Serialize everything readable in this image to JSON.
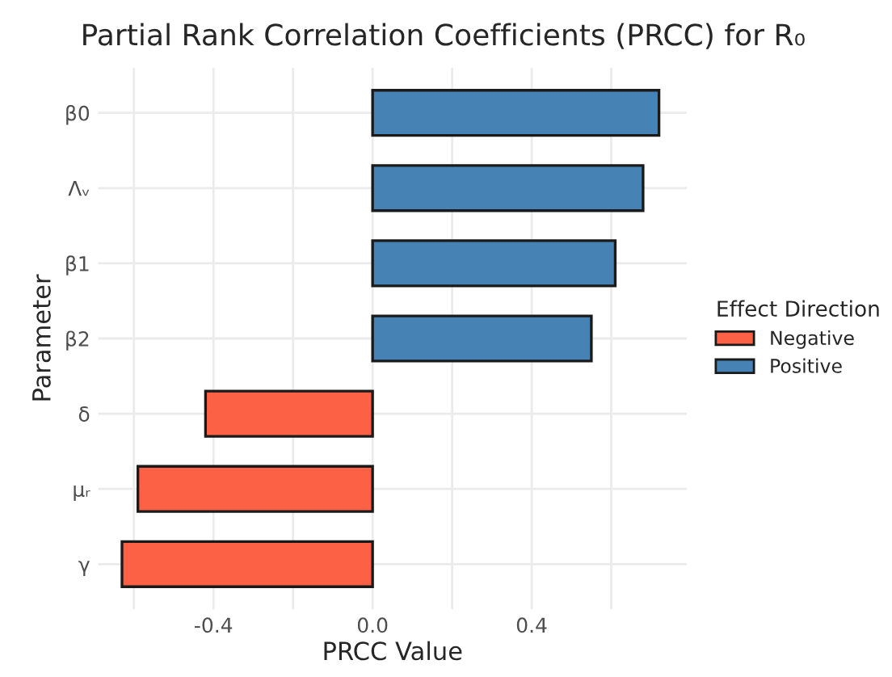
{
  "chart_data": {
    "type": "bar",
    "orientation": "horizontal",
    "title": "Partial Rank Correlation Coefficients (PRCC) for R₀",
    "xlabel": "PRCC Value",
    "ylabel": "Parameter",
    "legend_title": "Effect Direction",
    "categories": [
      "β0",
      "Λᵥ",
      "β1",
      "β2",
      "δ",
      "μᵣ",
      "γ"
    ],
    "series": [
      {
        "name": "Negative",
        "color": "#fc6146",
        "values": [
          null,
          null,
          null,
          null,
          -0.42,
          -0.59,
          -0.63
        ]
      },
      {
        "name": "Positive",
        "color": "#4682b4",
        "values": [
          0.72,
          0.68,
          0.61,
          0.55,
          null,
          null,
          null
        ]
      }
    ],
    "xlim": [
      -0.69,
      0.79
    ],
    "xticks": [
      {
        "value": -0.6,
        "label": null
      },
      -0.4,
      {
        "value": -0.2,
        "label": null
      },
      {
        "value": 0.0,
        "label": "0.0"
      },
      {
        "value": 0.2,
        "label": null
      },
      0.4,
      {
        "value": 0.6,
        "label": null
      }
    ],
    "grid": true,
    "legend": "right"
  }
}
